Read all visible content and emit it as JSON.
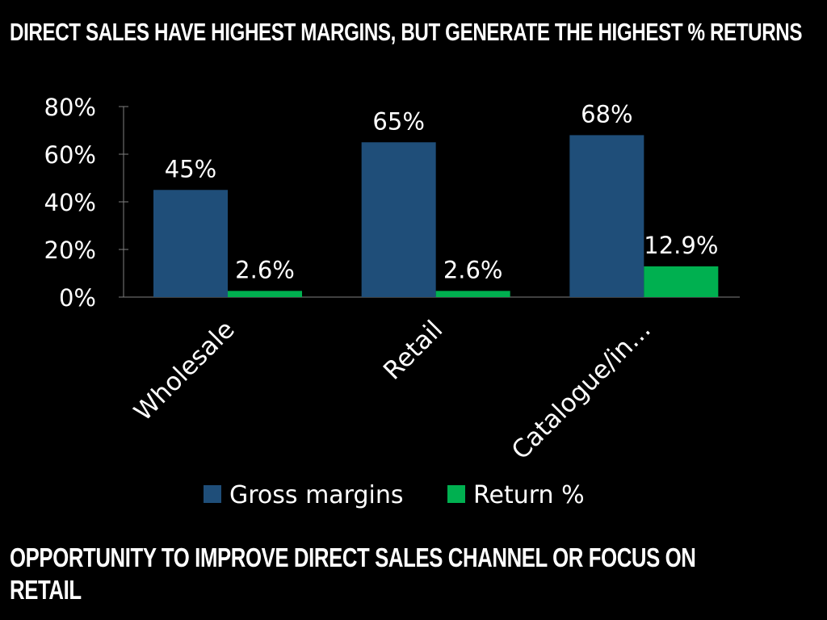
{
  "slide": {
    "title": "DIRECT SALES HAVE HIGHEST MARGINS, BUT GENERATE THE HIGHEST % RETURNS",
    "note": "OPPORTUNITY TO IMPROVE DIRECT SALES CHANNEL OR FOCUS ON RETAIL"
  },
  "chart_data": {
    "type": "bar",
    "categories": [
      "Wholesale",
      "Retail",
      "Catalogue/in…"
    ],
    "series": [
      {
        "name": "Gross margins",
        "values": [
          45,
          65,
          68
        ],
        "labels": [
          "45%",
          "65%",
          "68%"
        ],
        "color": "#1f4e79"
      },
      {
        "name": "Return %",
        "values": [
          2.6,
          2.6,
          12.9
        ],
        "labels": [
          "2.6%",
          "2.6%",
          "12.9%"
        ],
        "color": "#00b050"
      }
    ],
    "yticks": [
      0,
      20,
      40,
      60,
      80
    ],
    "ytick_labels": [
      "0%",
      "20%",
      "40%",
      "60%",
      "80%"
    ],
    "ylim": [
      0,
      80
    ],
    "grid": false,
    "legend_position": "bottom"
  }
}
